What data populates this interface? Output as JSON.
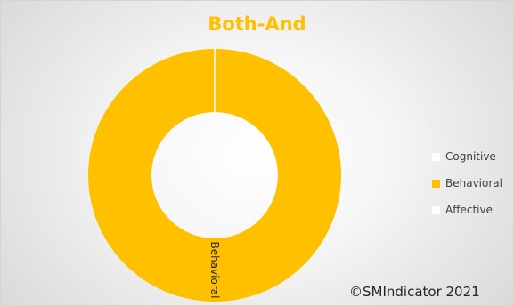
{
  "chart_data": {
    "type": "pie",
    "title": "Both-And",
    "donut": true,
    "categories": [
      "Cognitive",
      "Behavioral",
      "Affective"
    ],
    "values": [
      0,
      100,
      0
    ],
    "slice_labels": [
      "",
      "Behavioral",
      ""
    ],
    "colors": [
      "#ffffff",
      "#ffc000",
      "#ffffff"
    ],
    "legend": {
      "position": "right",
      "items": [
        {
          "label": "Cognitive",
          "color": "#ffffff"
        },
        {
          "label": "Behavioral",
          "color": "#ffc000"
        },
        {
          "label": "Affective",
          "color": "#ffffff"
        }
      ]
    }
  },
  "footer": {
    "copyright": "©SMIndicator 2021"
  }
}
